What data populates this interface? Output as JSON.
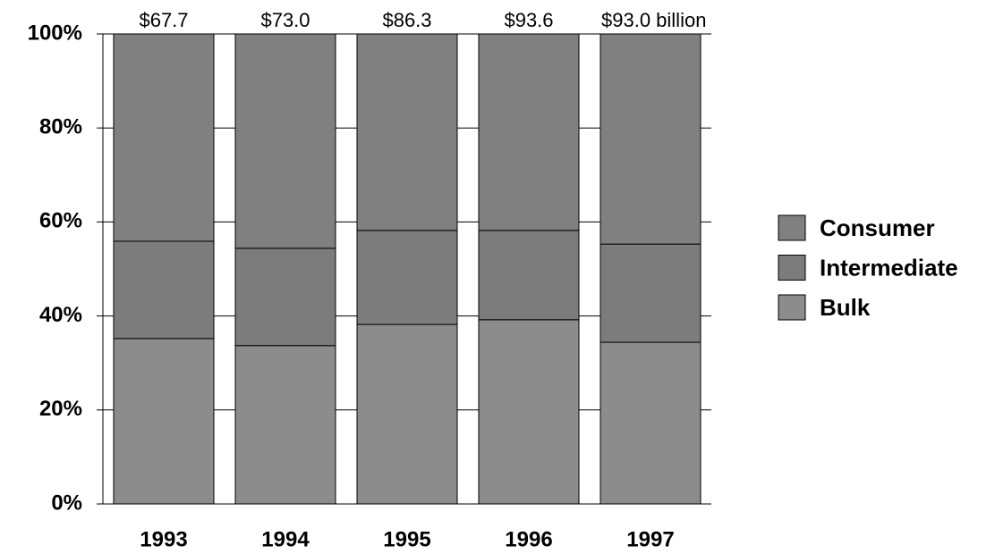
{
  "chart_data": {
    "type": "stacked_bar_100",
    "categories": [
      "1993",
      "1994",
      "1995",
      "1996",
      "1997"
    ],
    "bar_totals": [
      "$67.7",
      "$73.0",
      "$86.3",
      "$93.6",
      "$93.0 billion"
    ],
    "series": [
      {
        "name": "Bulk",
        "color": "#8c8c8c",
        "values": [
          35.2,
          33.7,
          38.2,
          39.2,
          34.4
        ]
      },
      {
        "name": "Intermediate",
        "color": "#7c7c7c",
        "values": [
          20.7,
          20.7,
          20.0,
          19.0,
          20.9
        ]
      },
      {
        "name": "Consumer",
        "color": "#808080",
        "values": [
          44.1,
          45.6,
          41.8,
          41.8,
          44.7
        ]
      }
    ],
    "ylim": [
      0,
      100
    ],
    "yticks": [
      {
        "value": 0,
        "label": "0%"
      },
      {
        "value": 20,
        "label": "20%"
      },
      {
        "value": 40,
        "label": "40%"
      },
      {
        "value": 60,
        "label": "60%"
      },
      {
        "value": 80,
        "label": "80%"
      },
      {
        "value": 100,
        "label": "100%"
      }
    ],
    "grid": true,
    "legend": "right"
  }
}
